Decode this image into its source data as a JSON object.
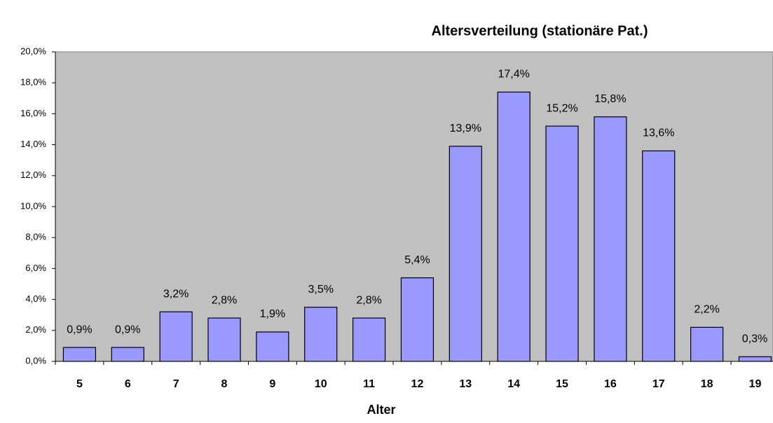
{
  "chart_data": {
    "type": "bar",
    "title": "Altersverteilung (stationäre Pat.)",
    "x_label": "Alter",
    "categories": [
      "5",
      "6",
      "7",
      "8",
      "9",
      "10",
      "11",
      "12",
      "13",
      "14",
      "15",
      "16",
      "17",
      "18",
      "19"
    ],
    "values": [
      0.9,
      0.9,
      3.2,
      2.8,
      1.9,
      3.5,
      2.8,
      5.4,
      13.9,
      17.4,
      15.2,
      15.8,
      13.6,
      2.2,
      0.3
    ],
    "value_labels": [
      "0,9%",
      "0,9%",
      "3,2%",
      "2,8%",
      "1,9%",
      "3,5%",
      "2,8%",
      "5,4%",
      "13,9%",
      "17,4%",
      "15,2%",
      "15,8%",
      "13,6%",
      "2,2%",
      "0,3%"
    ],
    "color": "#9999ff",
    "plot_background": "#c0c0c0",
    "ylim": [
      0,
      20
    ],
    "yticks": [
      {
        "value": 0,
        "label": "0,0%"
      },
      {
        "value": 2,
        "label": "2,0%"
      },
      {
        "value": 4,
        "label": "4,0%"
      },
      {
        "value": 6,
        "label": "6,0%"
      },
      {
        "value": 8,
        "label": "8,0%"
      },
      {
        "value": 10,
        "label": "10,0%"
      },
      {
        "value": 12,
        "label": "12,0%"
      },
      {
        "value": 14,
        "label": "14,0%"
      },
      {
        "value": 16,
        "label": "16,0%"
      },
      {
        "value": 18,
        "label": "18,0%"
      },
      {
        "value": 20,
        "label": "20,0%"
      }
    ],
    "grid": false
  }
}
